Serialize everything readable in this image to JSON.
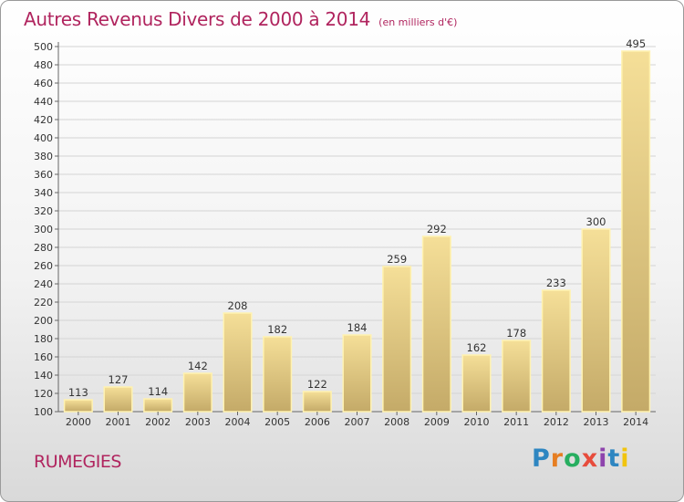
{
  "header": {
    "title": "Autres Revenus Divers de 2000 à 2014",
    "subtitle": "(en milliers d'€)"
  },
  "footer": {
    "commune": "RUMEGIES",
    "logo_text": "Proxiti",
    "logo_colors": [
      "#2e86c1",
      "#e67e22",
      "#27ae60",
      "#e74c3c",
      "#8e44ad",
      "#2e86c1",
      "#f1c40f"
    ]
  },
  "chart_data": {
    "type": "bar",
    "title": "Autres Revenus Divers de 2000 à 2014",
    "subtitle": "(en milliers d'€)",
    "categories": [
      "2000",
      "2001",
      "2002",
      "2003",
      "2004",
      "2005",
      "2006",
      "2007",
      "2008",
      "2009",
      "2010",
      "2011",
      "2012",
      "2013",
      "2014"
    ],
    "values": [
      113,
      127,
      114,
      142,
      208,
      182,
      122,
      184,
      259,
      292,
      162,
      178,
      233,
      300,
      495
    ],
    "ylim": [
      100,
      500
    ],
    "ytick_step": 20,
    "grid": true,
    "bar_color_top": "#f5df98",
    "bar_color_bottom": "#c4aa68",
    "bar_edge_color": "#fff2b0"
  }
}
